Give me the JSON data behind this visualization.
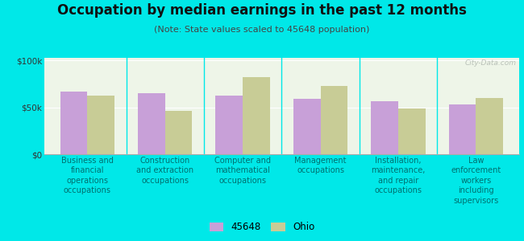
{
  "title": "Occupation by median earnings in the past 12 months",
  "subtitle": "(Note: State values scaled to 45648 population)",
  "categories": [
    "Business and\nfinancial\noperations\noccupations",
    "Construction\nand extraction\noccupations",
    "Computer and\nmathematical\noccupations",
    "Management\noccupations",
    "Installation,\nmaintenance,\nand repair\noccupations",
    "Law\nenforcement\nworkers\nincluding\nsupervisors"
  ],
  "values_45648": [
    67000,
    65000,
    63000,
    59000,
    57000,
    53000
  ],
  "values_ohio": [
    63000,
    46000,
    82000,
    73000,
    49000,
    60000
  ],
  "color_45648": "#c8a0d8",
  "color_ohio": "#c8cc96",
  "background_color": "#00e8e8",
  "plot_facecolor": "#eef5e8",
  "ylabel_ticks": [
    "$0",
    "$50k",
    "$100k"
  ],
  "ytick_vals": [
    0,
    50000,
    100000
  ],
  "ylim": [
    0,
    103000
  ],
  "watermark": "City-Data.com",
  "legend_45648": "45648",
  "legend_ohio": "Ohio",
  "title_fontsize": 12,
  "subtitle_fontsize": 8,
  "tick_fontsize": 7.5,
  "label_fontsize": 7.0,
  "bar_width": 0.35
}
